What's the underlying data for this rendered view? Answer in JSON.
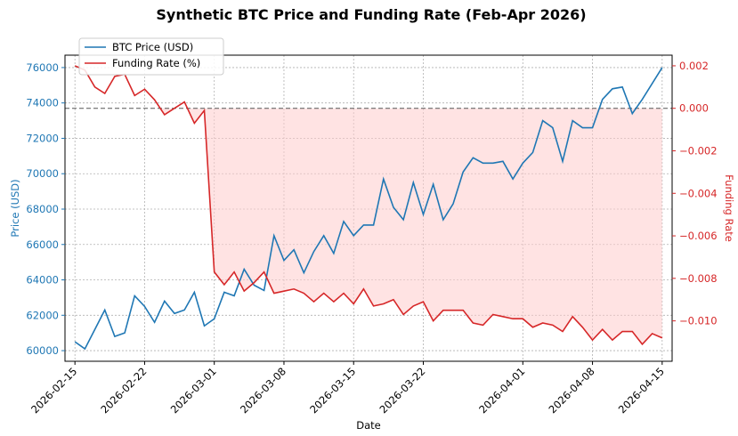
{
  "chart_data": {
    "type": "line",
    "title": "Synthetic BTC Price and Funding Rate (Feb-Apr 2026)",
    "xlabel": "Date",
    "ylabel_left": "Price (USD)",
    "ylabel_right": "Funding Rate",
    "colors": {
      "price": "#1f77b4",
      "funding": "#d62728",
      "fill": "#ffcccc",
      "zero_line": "#555555"
    },
    "legend": {
      "placement": "top-left",
      "entries": [
        "BTC Price (USD)",
        "Funding Rate (%)"
      ]
    },
    "grid": true,
    "x_ticks": [
      "2026-02-15",
      "2026-02-22",
      "2026-03-01",
      "2026-03-08",
      "2026-03-15",
      "2026-03-22",
      "2026-04-01",
      "2026-04-08",
      "2026-04-15"
    ],
    "y_left_ticks": [
      60000,
      62000,
      64000,
      66000,
      68000,
      70000,
      72000,
      74000,
      76000
    ],
    "y_right_ticks": [
      -0.01,
      -0.008,
      -0.006,
      -0.004,
      -0.002,
      0.0,
      0.002
    ],
    "y_right_tick_labels": [
      "−0.010",
      "−0.008",
      "−0.006",
      "−0.004",
      "−0.002",
      "0.000",
      "0.002"
    ],
    "ylim_left": [
      59400,
      76700
    ],
    "ylim_right": [
      -0.0119,
      0.0025
    ],
    "x_start_date": "2026-02-14",
    "x_end_date": "2026-04-16",
    "dates": [
      "2026-02-15",
      "2026-02-16",
      "2026-02-17",
      "2026-02-18",
      "2026-02-19",
      "2026-02-20",
      "2026-02-21",
      "2026-02-22",
      "2026-02-23",
      "2026-02-24",
      "2026-02-25",
      "2026-02-26",
      "2026-02-27",
      "2026-02-28",
      "2026-03-01",
      "2026-03-02",
      "2026-03-03",
      "2026-03-04",
      "2026-03-05",
      "2026-03-06",
      "2026-03-07",
      "2026-03-08",
      "2026-03-09",
      "2026-03-10",
      "2026-03-11",
      "2026-03-12",
      "2026-03-13",
      "2026-03-14",
      "2026-03-15",
      "2026-03-16",
      "2026-03-17",
      "2026-03-18",
      "2026-03-19",
      "2026-03-20",
      "2026-03-21",
      "2026-03-22",
      "2026-03-23",
      "2026-03-24",
      "2026-03-25",
      "2026-03-26",
      "2026-03-27",
      "2026-03-28",
      "2026-03-29",
      "2026-03-30",
      "2026-03-31",
      "2026-04-01",
      "2026-04-02",
      "2026-04-03",
      "2026-04-04",
      "2026-04-05",
      "2026-04-06",
      "2026-04-07",
      "2026-04-08",
      "2026-04-09",
      "2026-04-10",
      "2026-04-11",
      "2026-04-12",
      "2026-04-13",
      "2026-04-14",
      "2026-04-15"
    ],
    "series": [
      {
        "name": "BTC Price (USD)",
        "axis": "left",
        "values": [
          60500,
          60100,
          61200,
          62300,
          60800,
          61000,
          63100,
          62500,
          61600,
          62800,
          62100,
          62300,
          63300,
          61400,
          61800,
          63300,
          63100,
          64600,
          63700,
          63400,
          66500,
          65100,
          65700,
          64400,
          65600,
          66500,
          65500,
          67300,
          66500,
          67100,
          67100,
          69700,
          68100,
          67400,
          69500,
          67700,
          69400,
          67400,
          68300,
          70100,
          70900,
          70600,
          70600,
          70700,
          69700,
          70600,
          71200,
          73000,
          72600,
          70700,
          73000,
          72600,
          72600,
          74200,
          74800,
          74900,
          73400,
          74200,
          75100,
          76000
        ]
      },
      {
        "name": "Funding Rate (%)",
        "axis": "right",
        "values": [
          0.002,
          0.0018,
          0.001,
          0.0007,
          0.0015,
          0.0016,
          0.0006,
          0.0009,
          0.0004,
          -0.0003,
          0.0,
          0.0003,
          -0.0007,
          -0.0001,
          -0.0077,
          -0.0083,
          -0.0077,
          -0.0086,
          -0.0082,
          -0.0077,
          -0.0087,
          -0.0086,
          -0.0085,
          -0.0087,
          -0.0091,
          -0.0087,
          -0.0091,
          -0.0087,
          -0.0092,
          -0.0085,
          -0.0093,
          -0.0092,
          -0.009,
          -0.0097,
          -0.0093,
          -0.0091,
          -0.01,
          -0.0095,
          -0.0095,
          -0.0095,
          -0.0101,
          -0.0102,
          -0.0097,
          -0.0098,
          -0.0099,
          -0.0099,
          -0.0103,
          -0.0101,
          -0.0102,
          -0.0105,
          -0.0098,
          -0.0103,
          -0.0109,
          -0.0104,
          -0.0109,
          -0.0105,
          -0.0105,
          -0.0111,
          -0.0106,
          -0.0108
        ]
      }
    ]
  }
}
